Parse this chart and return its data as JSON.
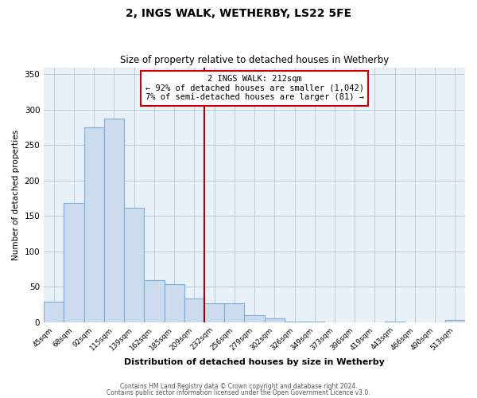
{
  "title": "2, INGS WALK, WETHERBY, LS22 5FE",
  "subtitle": "Size of property relative to detached houses in Wetherby",
  "xlabel": "Distribution of detached houses by size in Wetherby",
  "ylabel": "Number of detached properties",
  "bar_labels": [
    "45sqm",
    "68sqm",
    "92sqm",
    "115sqm",
    "139sqm",
    "162sqm",
    "185sqm",
    "209sqm",
    "232sqm",
    "256sqm",
    "279sqm",
    "302sqm",
    "326sqm",
    "349sqm",
    "373sqm",
    "396sqm",
    "419sqm",
    "443sqm",
    "466sqm",
    "490sqm",
    "513sqm"
  ],
  "bar_values": [
    29,
    168,
    275,
    288,
    162,
    59,
    54,
    33,
    27,
    27,
    10,
    5,
    1,
    1,
    0,
    0,
    0,
    1,
    0,
    0,
    3
  ],
  "bar_color": "#ccdcee",
  "bar_edge_color": "#7aaed6",
  "vline_x": 7.5,
  "vline_color": "#990000",
  "annotation_line1": "2 INGS WALK: 212sqm",
  "annotation_line2": "← 92% of detached houses are smaller (1,042)",
  "annotation_line3": "7% of semi-detached houses are larger (81) →",
  "annotation_box_color": "#ffffff",
  "annotation_box_edge": "#cc0000",
  "ylim": [
    0,
    360
  ],
  "yticks": [
    0,
    50,
    100,
    150,
    200,
    250,
    300,
    350
  ],
  "footer_line1": "Contains HM Land Registry data © Crown copyright and database right 2024.",
  "footer_line2": "Contains public sector information licensed under the Open Government Licence v3.0.",
  "background_color": "#ffffff",
  "plot_bg_color": "#e8f0f8",
  "grid_color": "#b0c4d8"
}
